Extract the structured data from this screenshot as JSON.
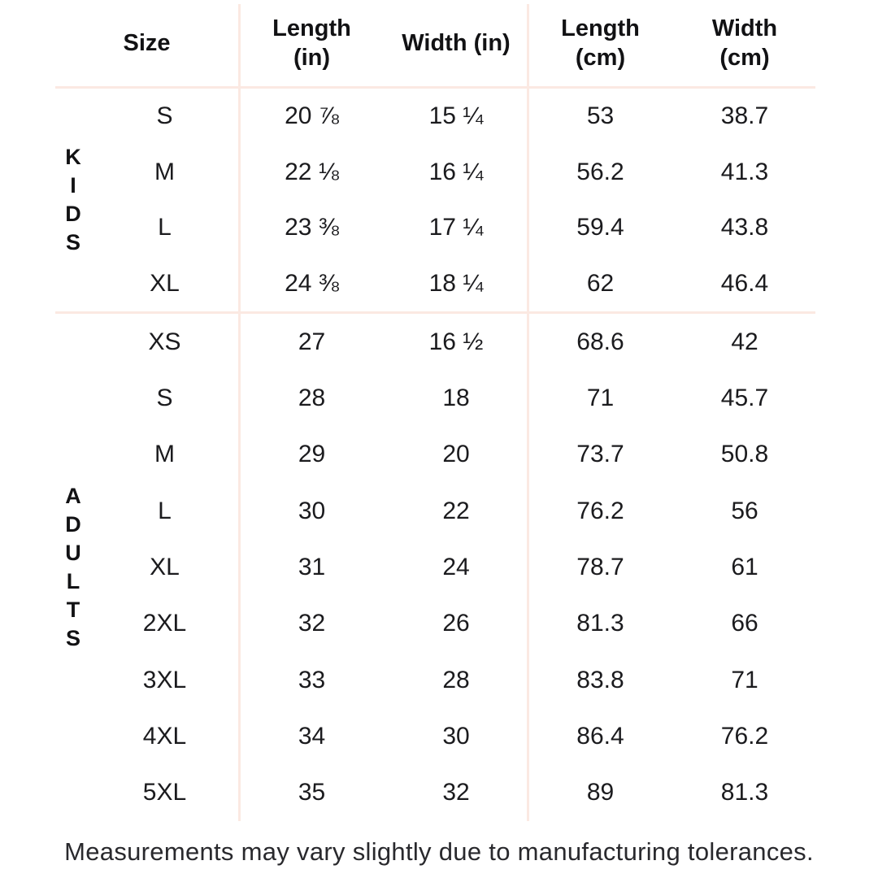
{
  "chart_data": {
    "type": "table",
    "columns": [
      {
        "label": "Size",
        "lines": [
          "Size"
        ]
      },
      {
        "label": "Length (in)",
        "lines": [
          "Length",
          "(in)"
        ]
      },
      {
        "label": "Width (in)",
        "lines": [
          "Width (in)"
        ]
      },
      {
        "label": "Length (cm)",
        "lines": [
          "Length",
          "(cm)"
        ]
      },
      {
        "label": "Width (cm)",
        "lines": [
          "Width",
          "(cm)"
        ]
      }
    ],
    "sections": [
      {
        "label": "KIDS",
        "rows": [
          [
            "S",
            "20 ⅞",
            "15 ¼",
            "53",
            "38.7"
          ],
          [
            "M",
            "22 ⅛",
            "16 ¼",
            "56.2",
            "41.3"
          ],
          [
            "L",
            "23 ⅜",
            "17 ¼",
            "59.4",
            "43.8"
          ],
          [
            "XL",
            "24 ⅜",
            "18 ¼",
            "62",
            "46.4"
          ]
        ]
      },
      {
        "label": "ADULTS",
        "rows": [
          [
            "XS",
            "27",
            "16 ½",
            "68.6",
            "42"
          ],
          [
            "S",
            "28",
            "18",
            "71",
            "45.7"
          ],
          [
            "M",
            "29",
            "20",
            "73.7",
            "50.8"
          ],
          [
            "L",
            "30",
            "22",
            "76.2",
            "56"
          ],
          [
            "XL",
            "31",
            "24",
            "78.7",
            "61"
          ],
          [
            "2XL",
            "32",
            "26",
            "81.3",
            "66"
          ],
          [
            "3XL",
            "33",
            "28",
            "83.8",
            "71"
          ],
          [
            "4XL",
            "34",
            "30",
            "86.4",
            "76.2"
          ],
          [
            "5XL",
            "35",
            "32",
            "89",
            "81.3"
          ]
        ]
      }
    ],
    "footnote": "Measurements may vary slightly due to manufacturing tolerances."
  },
  "colors": {
    "background": "#ffffff",
    "divider": "#fbe9e2",
    "text": "#17171a",
    "footnote_text": "#29292d"
  }
}
